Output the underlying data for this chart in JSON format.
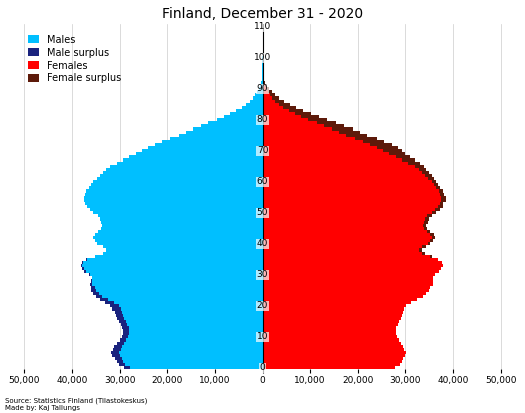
{
  "title": "Finland, December 31 - 2020",
  "source_text": "Source: Statistics Finland (Tilastokeskus)\nMade by: Kaj Tallungs",
  "male_color": "#00BFFF",
  "male_surplus_color": "#1A237E",
  "female_color": "#FF0000",
  "female_surplus_color": "#5D1A0A",
  "background_color": "#FFFFFF",
  "ages": [
    0,
    1,
    2,
    3,
    4,
    5,
    6,
    7,
    8,
    9,
    10,
    11,
    12,
    13,
    14,
    15,
    16,
    17,
    18,
    19,
    20,
    21,
    22,
    23,
    24,
    25,
    26,
    27,
    28,
    29,
    30,
    31,
    32,
    33,
    34,
    35,
    36,
    37,
    38,
    39,
    40,
    41,
    42,
    43,
    44,
    45,
    46,
    47,
    48,
    49,
    50,
    51,
    52,
    53,
    54,
    55,
    56,
    57,
    58,
    59,
    60,
    61,
    62,
    63,
    64,
    65,
    66,
    67,
    68,
    69,
    70,
    71,
    72,
    73,
    74,
    75,
    76,
    77,
    78,
    79,
    80,
    81,
    82,
    83,
    84,
    85,
    86,
    87,
    88,
    89,
    90,
    91,
    92,
    93,
    94,
    95,
    96,
    97,
    98,
    99,
    100,
    101,
    102,
    103,
    104,
    105,
    106,
    107,
    108,
    109,
    110
  ],
  "males": [
    29100,
    30200,
    30600,
    31000,
    31500,
    31800,
    31400,
    31100,
    30500,
    30000,
    29500,
    29200,
    29200,
    29400,
    29800,
    30200,
    30500,
    30800,
    31000,
    31500,
    32000,
    33000,
    34200,
    35000,
    35500,
    36000,
    36000,
    36200,
    36000,
    35800,
    36500,
    37500,
    38000,
    38200,
    38000,
    37000,
    35200,
    33500,
    32800,
    33500,
    34800,
    35200,
    35500,
    35200,
    34500,
    34000,
    33800,
    34000,
    34200,
    34500,
    35500,
    36200,
    36800,
    37200,
    37500,
    37500,
    37300,
    37000,
    36500,
    36000,
    35500,
    34800,
    34200,
    33500,
    32800,
    32000,
    30500,
    29200,
    28000,
    26500,
    25200,
    24000,
    22500,
    21000,
    19500,
    17500,
    16000,
    14500,
    13000,
    11500,
    9500,
    8000,
    6800,
    5500,
    4400,
    3500,
    2700,
    2000,
    1500,
    1050,
    720,
    480,
    290,
    170,
    95,
    55,
    30,
    15,
    8,
    3,
    1,
    0,
    0,
    0,
    0,
    0,
    0,
    0,
    0,
    0,
    0
  ],
  "females": [
    27800,
    28800,
    29200,
    29500,
    29900,
    30200,
    29800,
    29600,
    29000,
    28600,
    28200,
    28000,
    28000,
    28100,
    28400,
    28700,
    29000,
    29300,
    29500,
    29800,
    30200,
    31200,
    32500,
    33600,
    34400,
    35000,
    35200,
    35800,
    35800,
    35700,
    36300,
    37100,
    37500,
    37800,
    37700,
    36900,
    35500,
    34200,
    33500,
    34300,
    35200,
    35700,
    36200,
    36000,
    35200,
    34500,
    34300,
    34700,
    35000,
    35500,
    36500,
    37200,
    37900,
    38000,
    38500,
    38500,
    38200,
    37800,
    37200,
    36800,
    36500,
    36000,
    35500,
    35000,
    34300,
    34000,
    33000,
    32000,
    31000,
    30000,
    29300,
    28500,
    27200,
    25500,
    24000,
    22000,
    20500,
    19000,
    17200,
    15500,
    13500,
    11800,
    10200,
    8600,
    7000,
    5700,
    4500,
    3500,
    2700,
    1900,
    1350,
    950,
    620,
    380,
    220,
    125,
    68,
    35,
    18,
    8,
    3,
    1,
    0,
    0,
    0,
    0,
    0,
    0,
    0,
    0,
    0
  ],
  "xlim": 52000,
  "ylim_max": 111,
  "yticks": [
    0,
    10,
    20,
    30,
    40,
    50,
    60,
    70,
    80,
    90,
    100,
    110
  ],
  "xticks": [
    -50000,
    -40000,
    -30000,
    -20000,
    -10000,
    0,
    10000,
    20000,
    30000,
    40000,
    50000
  ],
  "xticklabels": [
    "50,000",
    "40,000",
    "30,000",
    "20,000",
    "10,000",
    "0",
    "10,000",
    "20,000",
    "30,000",
    "40,000",
    "50,000"
  ],
  "figwidth": 5.25,
  "figheight": 4.13,
  "dpi": 100
}
